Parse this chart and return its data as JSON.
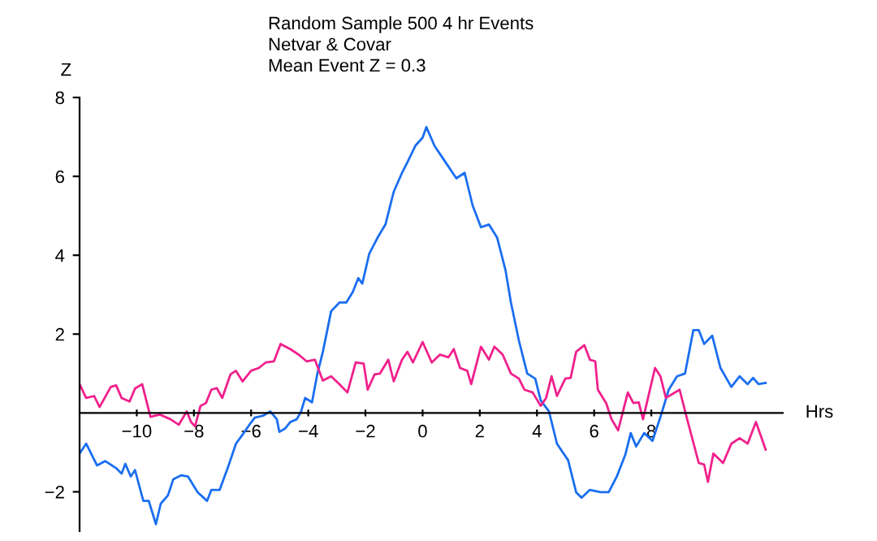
{
  "chart_data": {
    "type": "line",
    "title": "Random Sample 500 4 hr Events",
    "subtitle": "Netvar & Covar",
    "annotations": [
      "Mean Event Z = 0.3"
    ],
    "xlabel": "Hrs",
    "ylabel": "Z",
    "xlim": [
      -12,
      12.6
    ],
    "ylim": [
      -3,
      8
    ],
    "xticks": [
      -10,
      -8,
      -6,
      -4,
      -2,
      0,
      2,
      4,
      6,
      8
    ],
    "yticks": [
      -2,
      2,
      4,
      6,
      8
    ],
    "grid": false,
    "marker": "none",
    "line_style": "solid",
    "series": [
      {
        "color": "#1a6ef0",
        "x": [
          -12.0,
          -11.77,
          -11.39,
          -11.1,
          -10.72,
          -10.53,
          -10.4,
          -10.21,
          -10.06,
          -9.77,
          -9.58,
          -9.33,
          -9.16,
          -8.91,
          -8.72,
          -8.44,
          -8.21,
          -7.87,
          -7.54,
          -7.39,
          -7.1,
          -6.82,
          -6.53,
          -6.3,
          -6.06,
          -5.87,
          -5.58,
          -5.33,
          -5.1,
          -5.01,
          -4.82,
          -4.63,
          -4.4,
          -4.25,
          -4.11,
          -3.87,
          -3.68,
          -3.49,
          -3.2,
          -2.91,
          -2.67,
          -2.44,
          -2.25,
          -2.11,
          -1.87,
          -1.58,
          -1.3,
          -1.01,
          -0.72,
          -0.53,
          -0.25,
          0.0,
          0.13,
          0.42,
          0.8,
          1.18,
          1.47,
          1.75,
          2.04,
          2.32,
          2.61,
          2.9,
          3.09,
          3.37,
          3.66,
          3.94,
          4.13,
          4.42,
          4.7,
          5.09,
          5.37,
          5.56,
          5.85,
          6.23,
          6.51,
          6.8,
          7.09,
          7.28,
          7.47,
          7.75,
          8.04,
          8.32,
          8.61,
          8.9,
          9.18,
          9.47,
          9.66,
          9.85,
          10.13,
          10.42,
          10.8,
          11.09,
          11.37,
          11.56,
          11.75,
          12.0
        ],
        "values": [
          -1.03,
          -0.78,
          -1.33,
          -1.22,
          -1.4,
          -1.54,
          -1.29,
          -1.61,
          -1.45,
          -2.23,
          -2.23,
          -2.82,
          -2.3,
          -2.09,
          -1.68,
          -1.58,
          -1.61,
          -2.01,
          -2.23,
          -1.95,
          -1.95,
          -1.4,
          -0.78,
          -0.55,
          -0.3,
          -0.12,
          -0.07,
          0.04,
          -0.16,
          -0.48,
          -0.4,
          -0.23,
          -0.16,
          0.04,
          0.38,
          0.27,
          1.0,
          1.55,
          2.58,
          2.8,
          2.8,
          3.07,
          3.42,
          3.28,
          4.03,
          4.44,
          4.78,
          5.61,
          6.09,
          6.36,
          6.78,
          6.98,
          7.25,
          6.77,
          6.36,
          5.95,
          6.09,
          5.26,
          4.71,
          4.78,
          4.44,
          3.62,
          2.8,
          1.83,
          1.0,
          0.87,
          0.32,
          0.04,
          -0.78,
          -1.2,
          -2.01,
          -2.15,
          -1.95,
          -2.01,
          -2.01,
          -1.6,
          -1.06,
          -0.51,
          -0.85,
          -0.51,
          -0.71,
          -0.1,
          0.59,
          0.93,
          1.0,
          2.1,
          2.1,
          1.75,
          1.96,
          1.14,
          0.66,
          0.93,
          0.73,
          0.89,
          0.73,
          0.76
        ]
      },
      {
        "color": "#f0208c",
        "x": [
          -12.0,
          -11.77,
          -11.49,
          -11.3,
          -10.91,
          -10.72,
          -10.53,
          -10.25,
          -10.06,
          -9.81,
          -9.52,
          -9.2,
          -8.82,
          -8.53,
          -8.25,
          -8.1,
          -7.96,
          -7.77,
          -7.58,
          -7.39,
          -7.2,
          -7.01,
          -6.72,
          -6.53,
          -6.3,
          -6.0,
          -5.73,
          -5.49,
          -5.2,
          -4.97,
          -4.63,
          -4.34,
          -4.06,
          -3.77,
          -3.49,
          -3.2,
          -2.91,
          -2.63,
          -2.34,
          -2.06,
          -1.92,
          -1.68,
          -1.49,
          -1.2,
          -1.01,
          -0.72,
          -0.53,
          -0.34,
          0.0,
          0.32,
          0.61,
          0.9,
          1.09,
          1.31,
          1.56,
          1.7,
          2.04,
          2.32,
          2.51,
          2.8,
          3.09,
          3.37,
          3.56,
          3.85,
          4.13,
          4.32,
          4.51,
          4.7,
          4.99,
          5.18,
          5.37,
          5.66,
          5.85,
          6.04,
          6.13,
          6.42,
          6.61,
          6.84,
          7.18,
          7.37,
          7.56,
          7.71,
          8.13,
          8.32,
          8.51,
          8.99,
          9.28,
          9.66,
          9.85,
          9.98,
          10.17,
          10.51,
          10.8,
          11.09,
          11.37,
          11.66,
          12.0
        ],
        "values": [
          0.73,
          0.38,
          0.43,
          0.15,
          0.66,
          0.7,
          0.38,
          0.29,
          0.62,
          0.73,
          -0.1,
          -0.04,
          -0.16,
          -0.3,
          0.04,
          -0.23,
          -0.34,
          0.18,
          0.25,
          0.59,
          0.63,
          0.38,
          0.98,
          1.07,
          0.8,
          1.07,
          1.14,
          1.28,
          1.31,
          1.75,
          1.62,
          1.48,
          1.31,
          1.35,
          0.82,
          0.93,
          0.73,
          0.52,
          1.28,
          1.25,
          0.59,
          0.98,
          1.0,
          1.35,
          0.8,
          1.35,
          1.55,
          1.28,
          1.8,
          1.28,
          1.48,
          1.41,
          1.62,
          1.14,
          1.07,
          0.73,
          1.68,
          1.35,
          1.68,
          1.48,
          1.0,
          0.87,
          0.59,
          0.52,
          0.18,
          0.38,
          0.93,
          0.43,
          0.87,
          0.89,
          1.55,
          1.72,
          1.35,
          1.31,
          0.59,
          0.25,
          -0.16,
          -0.44,
          0.52,
          0.25,
          0.27,
          -0.16,
          1.14,
          0.93,
          0.38,
          0.59,
          -0.23,
          -1.27,
          -1.31,
          -1.75,
          -1.03,
          -1.27,
          -0.78,
          -0.64,
          -0.78,
          -0.23,
          -0.93
        ]
      }
    ]
  }
}
